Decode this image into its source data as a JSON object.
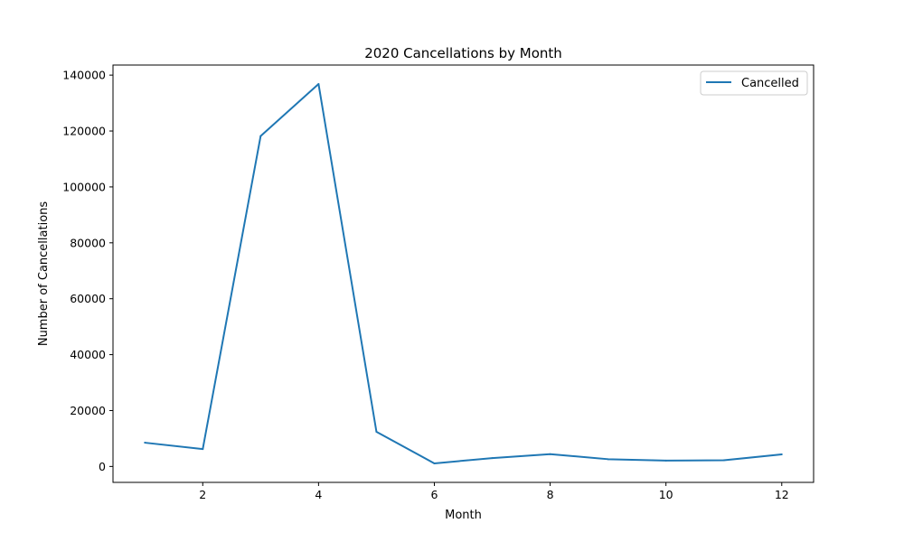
{
  "chart_data": {
    "type": "line",
    "title": "2020 Cancellations by Month",
    "xlabel": "Month",
    "ylabel": "Number of Cancellations",
    "x": [
      1,
      2,
      3,
      4,
      5,
      6,
      7,
      8,
      9,
      10,
      11,
      12
    ],
    "series": [
      {
        "name": "Cancelled",
        "color": "#1f77b4",
        "values": [
          8500,
          6200,
          118200,
          136800,
          12400,
          1100,
          3000,
          4400,
          2600,
          2100,
          2200,
          4300
        ]
      }
    ],
    "xticks": [
      2,
      4,
      6,
      8,
      10,
      12
    ],
    "yticks": [
      0,
      20000,
      40000,
      60000,
      80000,
      100000,
      120000,
      140000
    ],
    "xlim": [
      0.45,
      12.55
    ],
    "ylim": [
      -5700,
      143600
    ],
    "grid": false,
    "legend_position": "top-right"
  }
}
